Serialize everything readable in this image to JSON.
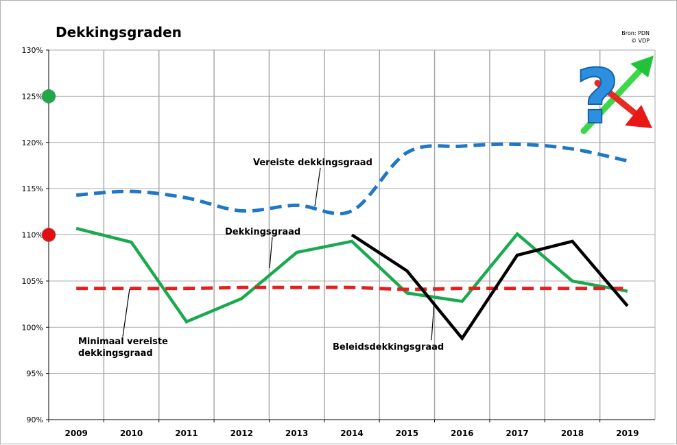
{
  "chart_data": {
    "type": "line",
    "title": "Dekkingsgraden",
    "source": [
      "Bron: PDN",
      "© VDP"
    ],
    "x": [
      "2009",
      "2010",
      "2011",
      "2012",
      "2013",
      "2014",
      "2015",
      "2016",
      "2017",
      "2018",
      "2019"
    ],
    "ylim": [
      90,
      130
    ],
    "y_ticks": [
      "90%",
      "95%",
      "100%",
      "105%",
      "110%",
      "115%",
      "120%",
      "125%",
      "130%"
    ],
    "grid": true,
    "series": [
      {
        "name": "Vereiste dekkingsgraad",
        "color": "#1f77c8",
        "style": "dashed",
        "values": [
          114.3,
          114.7,
          114.0,
          112.6,
          113.2,
          112.6,
          118.9,
          119.6,
          119.8,
          119.3,
          118.0
        ]
      },
      {
        "name": "Dekkingsgraad",
        "color": "#19a94e",
        "style": "solid",
        "values": [
          110.7,
          109.2,
          100.6,
          103.1,
          108.1,
          109.3,
          103.7,
          102.8,
          110.1,
          105.0,
          103.9
        ]
      },
      {
        "name": "Minimaal vereiste dekkingsgraad",
        "color": "#e32020",
        "style": "dashed",
        "values": [
          104.2,
          104.2,
          104.2,
          104.3,
          104.3,
          104.3,
          104.1,
          104.2,
          104.2,
          104.2,
          104.2
        ]
      },
      {
        "name": "Beleidsdekkingsgraad",
        "color": "#000000",
        "style": "solid",
        "values": [
          null,
          null,
          null,
          null,
          null,
          110.0,
          106.1,
          98.8,
          107.8,
          109.3,
          102.3
        ]
      }
    ],
    "annotations": [
      {
        "text": "Vereiste dekkingsgraad"
      },
      {
        "text": "Dekkingsgraad"
      },
      {
        "text": "Minimaal vereiste dekkingsgraad",
        "lines": [
          "Minimaal vereiste",
          "dekkingsgraad"
        ]
      },
      {
        "text": "Beleidsdekkingsgraad"
      }
    ],
    "markers": [
      {
        "value": 125,
        "color": "#1fa84a"
      },
      {
        "value": 110,
        "color": "#e01010"
      }
    ]
  }
}
